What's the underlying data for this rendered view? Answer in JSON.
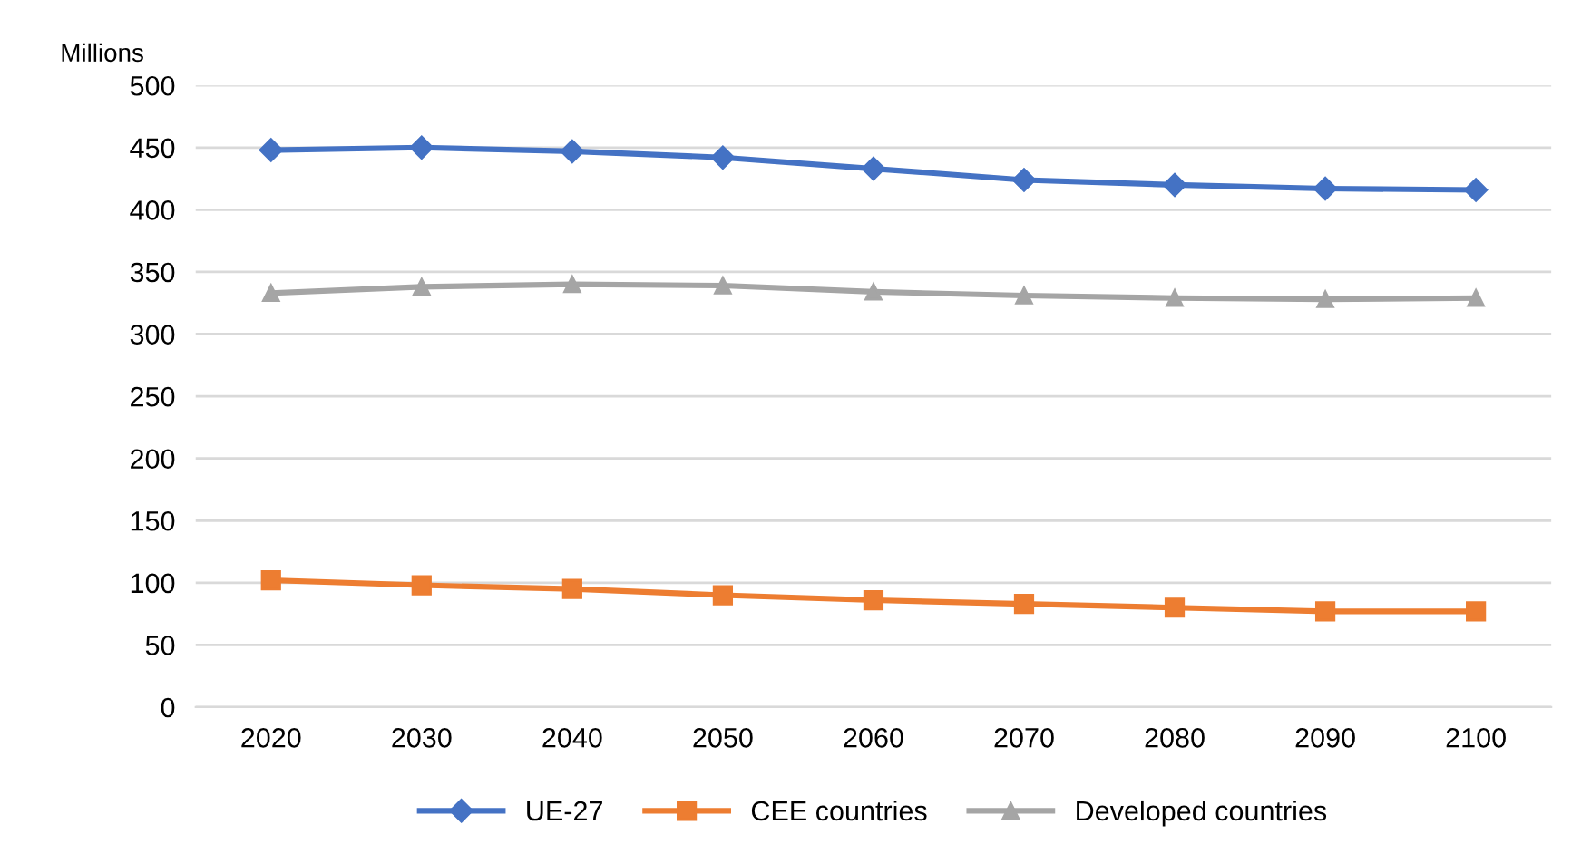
{
  "chart_data": {
    "type": "line",
    "ylabel": "Millions",
    "categories": [
      "2020",
      "2030",
      "2040",
      "2050",
      "2060",
      "2070",
      "2080",
      "2090",
      "2100"
    ],
    "series": [
      {
        "name": "UE-27",
        "color": "#4472c4",
        "marker": "diamond",
        "values": [
          448,
          450,
          447,
          442,
          433,
          424,
          420,
          417,
          416
        ]
      },
      {
        "name": "CEE countries",
        "color": "#ed7d31",
        "marker": "square",
        "values": [
          102,
          98,
          95,
          90,
          86,
          83,
          80,
          77,
          77
        ]
      },
      {
        "name": "Developed countries",
        "color": "#a5a5a5",
        "marker": "triangle",
        "values": [
          333,
          338,
          340,
          339,
          334,
          331,
          329,
          328,
          329
        ]
      }
    ],
    "ylim": [
      0,
      500
    ],
    "yticks": [
      0,
      50,
      100,
      150,
      200,
      250,
      300,
      350,
      400,
      450,
      500
    ],
    "grid": "y",
    "legend": "bottom",
    "line_style": "solid"
  }
}
